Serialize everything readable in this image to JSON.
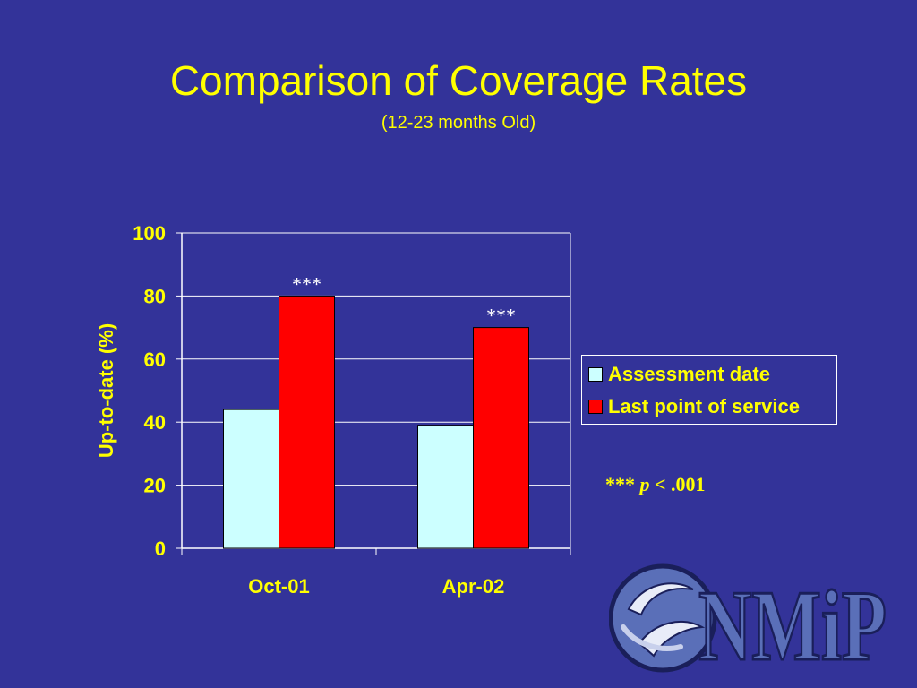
{
  "slide": {
    "title": "Comparison of Coverage Rates",
    "subtitle": "(12-23 months Old)"
  },
  "chart_data": {
    "type": "bar",
    "categories": [
      "Oct-01",
      "Apr-02"
    ],
    "series": [
      {
        "name": "Assessment date",
        "values": [
          44,
          39
        ],
        "color": "#ccffff"
      },
      {
        "name": "Last point of service",
        "values": [
          80,
          70
        ],
        "color": "#ff0000"
      }
    ],
    "annotations": [
      "***",
      "***"
    ],
    "ylabel": "Up-to-date (%)",
    "xlabel": "",
    "ylim": [
      0,
      100
    ],
    "yticks": [
      0,
      20,
      40,
      60,
      80,
      100
    ],
    "grid": true,
    "legend": "right"
  },
  "note": {
    "stars": "***",
    "p": "p",
    "rest": " < .001"
  },
  "logo": {
    "text": "NMiP",
    "icon": "embracing-figures-logo-icon"
  },
  "colors": {
    "background": "#333399",
    "text": "#ffff00",
    "grid": "#ffffff"
  }
}
